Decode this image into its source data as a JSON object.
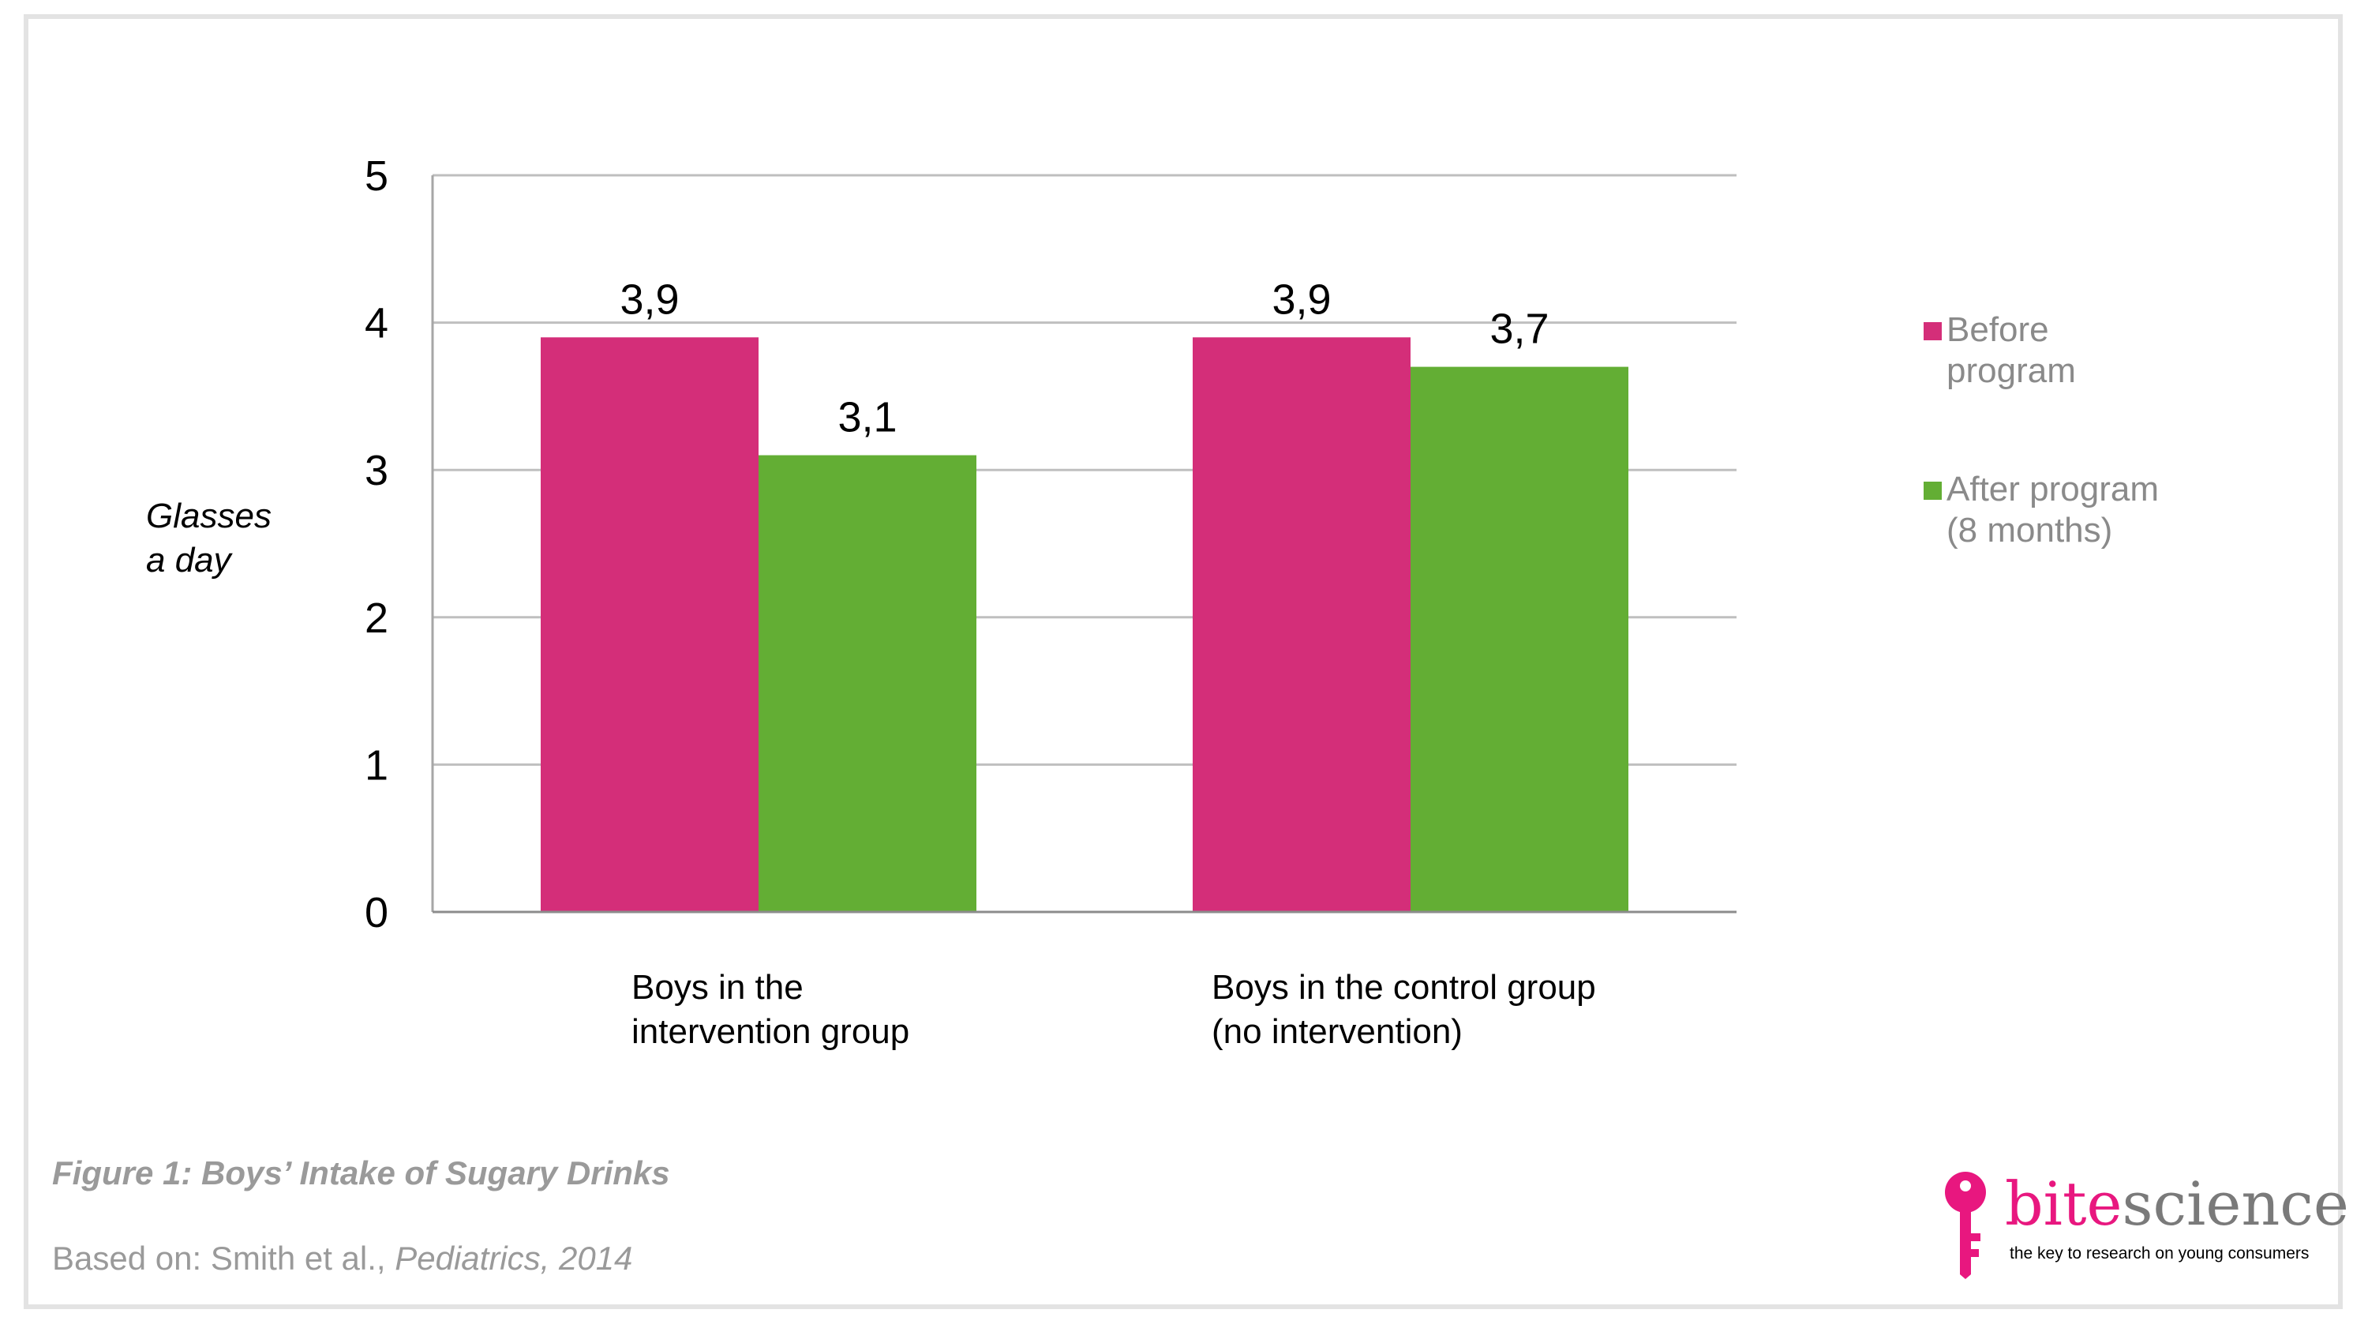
{
  "chart_data": {
    "type": "bar",
    "categories": [
      [
        "Boys in the",
        "intervention group"
      ],
      [
        "Boys in the control group",
        "(no intervention)"
      ]
    ],
    "series": [
      {
        "name": "Before program",
        "legend_lines": [
          "Before",
          "program"
        ],
        "color": "#d42e79",
        "values": [
          3.9,
          3.9
        ],
        "labels": [
          "3,9",
          "3,9"
        ]
      },
      {
        "name": "After program (8 months)",
        "legend_lines": [
          "After program",
          "(8 months)"
        ],
        "color": "#63ae34",
        "values": [
          3.1,
          3.7
        ],
        "labels": [
          "3,1",
          "3,7"
        ]
      }
    ],
    "ylabel_lines": [
      "Glasses",
      "a day"
    ],
    "ylim": [
      0,
      5
    ],
    "yticks": [
      0,
      1,
      2,
      3,
      4,
      5
    ],
    "grid": true,
    "legend_position": "right"
  },
  "caption": "Figure 1: Boys’ Intake of Sugary Drinks",
  "source": {
    "prefix": "Based on: Smith et al., ",
    "journal": "Pediatrics, 2014"
  },
  "logo": {
    "bite": "bite",
    "science": "science",
    "tagline": "the key to research on young consumers",
    "key_icon": "key-icon"
  },
  "colors": {
    "accent_pink": "#e8177f",
    "muted_text": "#9a9a9a",
    "gridline": "#bfbfbf"
  }
}
